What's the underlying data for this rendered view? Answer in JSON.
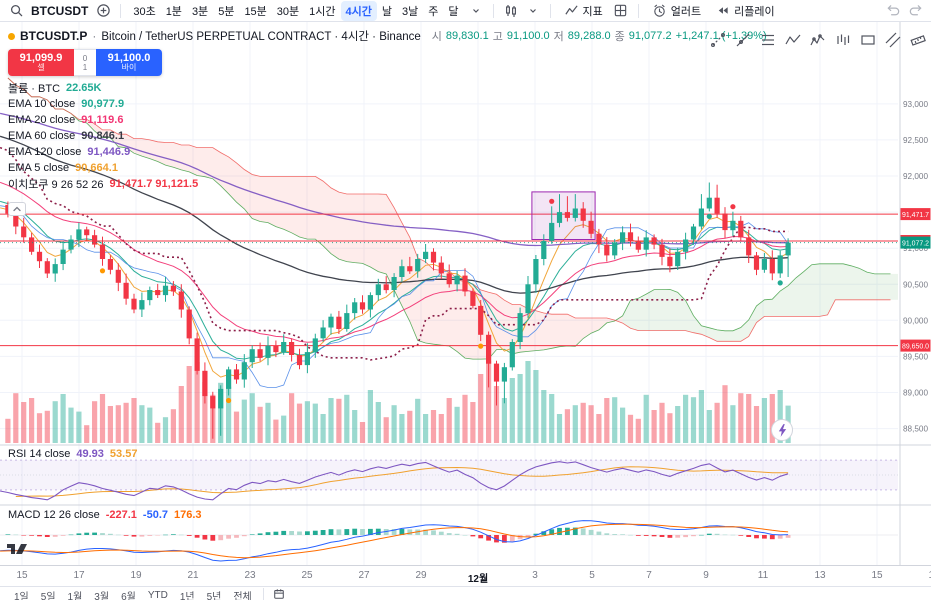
{
  "topbar": {
    "symbol": "BTCUSDT",
    "intervals": [
      "30초",
      "1분",
      "3분",
      "5분",
      "15분",
      "30분",
      "1시간",
      "4시간",
      "날",
      "3날",
      "주",
      "달"
    ],
    "active_interval": "4시간",
    "indicators_label": "지표",
    "alert_label": "얼러트",
    "replay_label": "리플레이"
  },
  "header": {
    "symbol": "BTCUSDT.P",
    "sep": "·",
    "desc": "Bitcoin / TetherUS PERPETUAL CONTRACT · 4시간 · Binance",
    "ohlc": {
      "o_label": "시",
      "o": "89,830.1",
      "h_label": "고",
      "h": "91,100.0",
      "l_label": "저",
      "l": "89,288.0",
      "c_label": "종",
      "c": "91,077.2",
      "change": "+1,247.1 (+1.39%)"
    }
  },
  "trade": {
    "sell_price": "91,099.9",
    "sell_label": "셀",
    "buy_price": "91,100.0",
    "buy_label": "바이",
    "spread_top": "0",
    "spread_bottom": "1"
  },
  "legend": {
    "rows": [
      {
        "label": "볼륨 · BTC",
        "value": "22.65K",
        "color": "#22ab94"
      },
      {
        "label": "EMA 10 close",
        "value": "90,977.9",
        "color": "#22ab94"
      },
      {
        "label": "EMA 20 close",
        "value": "91,119.6",
        "color": "#f23674"
      },
      {
        "label": "EMA 60 close",
        "value": "90,846.1",
        "color": "#363a45"
      },
      {
        "label": "EMA 120 close",
        "value": "91,446.9",
        "color": "#7e57c2"
      },
      {
        "label": "EMA 5 close",
        "value": "90,664.1",
        "color": "#f0a12f"
      },
      {
        "label": "이치모쿠 9 26 52 26",
        "value": "91,471.7  91,121.5",
        "color": "#f23645"
      }
    ]
  },
  "rsi": {
    "label": "RSI 14 close",
    "v1": "49.93",
    "v1_color": "#7e57c2",
    "v2": "53.57",
    "v2_color": "#f0a12f"
  },
  "macd": {
    "label": "MACD 12 26 close",
    "v1": "-227.1",
    "v1_color": "#f23645",
    "v2": "-50.7",
    "v2_color": "#2962ff",
    "v3": "176.3",
    "v3_color": "#ff6d00"
  },
  "time_axis": [
    "15",
    "17",
    "19",
    "21",
    "23",
    "25",
    "27",
    "29",
    "12월",
    "3",
    "5",
    "7",
    "9",
    "11",
    "13",
    "15",
    "17"
  ],
  "bottom": {
    "ranges": [
      "1일",
      "5일",
      "1월",
      "3월",
      "6월",
      "YTD",
      "1년",
      "5년",
      "전체"
    ]
  },
  "chart_data": {
    "type": "candlestick",
    "symbol": "BTCUSDT.P",
    "interval": "4시간",
    "ylim": [
      88300,
      93400
    ],
    "history_closes": [
      93300,
      93150,
      93000,
      92850,
      92900,
      92700,
      92500,
      92600,
      92400,
      92200,
      92300,
      92100,
      91900,
      92000,
      91800,
      91850,
      91700,
      91750,
      91600,
      91700,
      91550,
      91600,
      91500,
      91550,
      91450,
      91600
    ],
    "closes": [
      91480,
      91300,
      91150,
      90950,
      90820,
      90650,
      90780,
      90980,
      91120,
      91260,
      91180,
      91050,
      90850,
      90700,
      90520,
      90300,
      90150,
      90280,
      90420,
      90350,
      90480,
      90400,
      90150,
      89750,
      89300,
      88950,
      88780,
      89050,
      89320,
      89180,
      89420,
      89600,
      89480,
      89650,
      89560,
      89700,
      89520,
      89380,
      89560,
      89750,
      89900,
      90050,
      89880,
      90100,
      90250,
      90150,
      90350,
      90500,
      90420,
      90600,
      90750,
      90680,
      90850,
      90950,
      90800,
      90650,
      90500,
      90620,
      90400,
      90200,
      89800,
      89400,
      89150,
      89350,
      89700,
      90100,
      90500,
      90850,
      91100,
      91350,
      91500,
      91420,
      91550,
      91380,
      91200,
      91050,
      90900,
      91080,
      91220,
      91100,
      90980,
      91150,
      91050,
      90880,
      90750,
      90950,
      91120,
      91300,
      91550,
      91700,
      91480,
      91250,
      91380,
      91150,
      90900,
      90700,
      90850,
      90650,
      90900,
      91077.2
    ],
    "wick_overrides": {
      "26": [
        60,
        420
      ],
      "27": [
        50,
        380
      ],
      "61": [
        45,
        330
      ],
      "62": [
        40,
        330
      ],
      "63": [
        60,
        300
      ],
      "69": [
        230,
        40
      ],
      "70": [
        250,
        60
      ],
      "71": [
        220,
        50
      ],
      "72": [
        200,
        50
      ],
      "88": [
        200,
        40
      ],
      "89": [
        210,
        40
      ],
      "90": [
        180,
        60
      ],
      "99": [
        60,
        300
      ]
    },
    "hlines": [
      91471.7,
      91100.0,
      89650.0
    ],
    "current_price": 91077.2,
    "current_price_label": "91,077.2",
    "price_ticks": [
      88500,
      89000,
      89500,
      90000,
      90500,
      91000,
      91500,
      92000,
      92500,
      93000
    ],
    "markers": {
      "red_above": [
        69,
        92
      ],
      "orange_below": [
        12,
        28,
        60
      ],
      "teal_below": [
        89,
        98
      ]
    },
    "highlight_box": {
      "i1": 67,
      "i2": 74,
      "p_top": 91780,
      "p_bottom": 91120
    },
    "emas": [
      {
        "period": 5,
        "color": "#f0a12f"
      },
      {
        "period": 10,
        "color": "#22ab94"
      },
      {
        "period": 20,
        "color": "#f23674"
      },
      {
        "period": 60,
        "color": "#363a45"
      },
      {
        "period": 120,
        "color": "#7e57c2"
      }
    ],
    "ichimoku": {
      "tenkan_color": "#4985e7",
      "kijun_color": "#8c1f49",
      "spanA": "#43a047",
      "spanB": "#ef5350",
      "cloud_up": "rgba(67,160,71,0.10)",
      "cloud_dn": "rgba(244,67,54,0.10)"
    }
  }
}
